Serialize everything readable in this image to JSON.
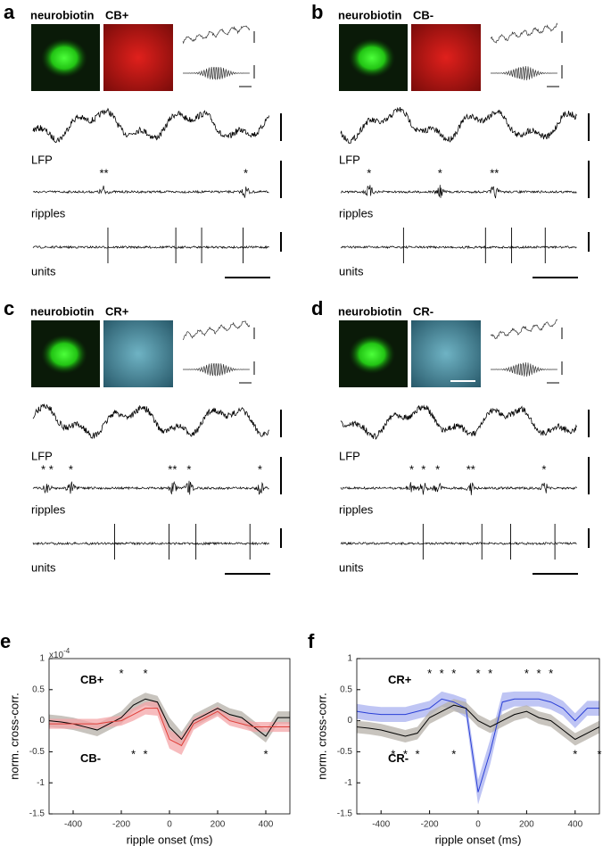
{
  "panels": [
    {
      "letter": "a",
      "stain": "neurobiotin",
      "marker": "CB+",
      "lfp": "LFP",
      "ripples": "ripples",
      "units": "units",
      "ripple_marks": [
        "**",
        "*"
      ]
    },
    {
      "letter": "b",
      "stain": "neurobiotin",
      "marker": "CB-",
      "lfp": "LFP",
      "ripples": "ripples",
      "units": "units",
      "ripple_marks": [
        "*",
        "*",
        "**"
      ]
    },
    {
      "letter": "c",
      "stain": "neurobiotin",
      "marker": "CR+",
      "lfp": "LFP",
      "ripples": "ripples",
      "units": "units",
      "ripple_marks": [
        "* *",
        "*",
        "**",
        "*",
        "*"
      ]
    },
    {
      "letter": "d",
      "stain": "neurobiotin",
      "marker": "CR-",
      "lfp": "LFP",
      "ripples": "ripples",
      "units": "units",
      "ripple_marks": [
        "*",
        "*",
        "*",
        "**",
        "*"
      ]
    }
  ],
  "chart_data": [
    {
      "type": "line",
      "label": "e",
      "multiplier": {
        "base": "x10",
        "exponent": "-4"
      },
      "x_label": "ripple onset (ms)",
      "y_label": "norm. cross-corr.",
      "x": [
        -500,
        -450,
        -400,
        -350,
        -300,
        -250,
        -200,
        -150,
        -100,
        -50,
        0,
        50,
        100,
        150,
        200,
        250,
        300,
        350,
        400,
        450,
        500
      ],
      "xlim": [
        -500,
        500
      ],
      "xticks": [
        -400,
        -200,
        0,
        200,
        400
      ],
      "ylim": [
        -1.5,
        1
      ],
      "yticks": [
        -1.5,
        -1,
        -0.5,
        0,
        0.5,
        1
      ],
      "series": [
        {
          "name": "CB+",
          "color": "#000000",
          "band_color": "#b5b0a8",
          "values": [
            0,
            -0.02,
            -0.05,
            -0.1,
            -0.15,
            -0.05,
            0.05,
            0.25,
            0.35,
            0.3,
            -0.1,
            -0.3,
            0,
            0.1,
            0.2,
            0.1,
            0.05,
            -0.1,
            -0.25,
            0.05,
            0.05
          ],
          "errors": [
            0.1,
            0.1,
            0.1,
            0.1,
            0.1,
            0.1,
            0.1,
            0.1,
            0.1,
            0.1,
            0.15,
            0.12,
            0.1,
            0.1,
            0.1,
            0.1,
            0.1,
            0.1,
            0.1,
            0.1,
            0.1
          ]
        },
        {
          "name": "CB-",
          "color": "#e0403a",
          "band_color": "#f4a5a8",
          "values": [
            -0.05,
            -0.05,
            -0.05,
            -0.05,
            -0.05,
            -0.02,
            0,
            0.1,
            0.2,
            0.2,
            -0.3,
            -0.4,
            -0.05,
            0.05,
            0.15,
            0,
            -0.05,
            -0.1,
            -0.1,
            -0.1,
            -0.1
          ],
          "errors": [
            0.08,
            0.08,
            0.08,
            0.08,
            0.08,
            0.08,
            0.08,
            0.1,
            0.1,
            0.12,
            0.15,
            0.15,
            0.1,
            0.08,
            0.08,
            0.08,
            0.08,
            0.08,
            0.08,
            0.08,
            0.08
          ]
        }
      ],
      "annotations": [
        {
          "text": "*",
          "x": -200,
          "y": 0.75,
          "color": "#e0403a"
        },
        {
          "text": "*",
          "x": -100,
          "y": 0.75,
          "color": "#e0403a"
        },
        {
          "text": "*",
          "x": -150,
          "y": -0.55,
          "color": "#000000"
        },
        {
          "text": "*",
          "x": -100,
          "y": -0.55,
          "color": "#000000"
        },
        {
          "text": "*",
          "x": 400,
          "y": -0.55,
          "color": "#000000"
        }
      ]
    },
    {
      "type": "line",
      "label": "f",
      "x_label": "ripple onset (ms)",
      "y_label": "norm. cross-corr.",
      "x": [
        -500,
        -450,
        -400,
        -350,
        -300,
        -250,
        -200,
        -150,
        -100,
        -50,
        0,
        50,
        100,
        150,
        200,
        250,
        300,
        350,
        400,
        450,
        500
      ],
      "xlim": [
        -500,
        500
      ],
      "xticks": [
        -400,
        -200,
        0,
        200,
        400
      ],
      "ylim": [
        -1.5,
        1
      ],
      "yticks": [
        -1.5,
        -1,
        -0.5,
        0,
        0.5,
        1
      ],
      "series": [
        {
          "name": "CR+",
          "color": "#2a3fd6",
          "band_color": "#aab1f0",
          "values": [
            0.15,
            0.12,
            0.1,
            0.1,
            0.1,
            0.15,
            0.2,
            0.35,
            0.3,
            0.2,
            -1.15,
            -0.5,
            0.3,
            0.35,
            0.35,
            0.35,
            0.3,
            0.2,
            0,
            0.2,
            0.2
          ],
          "errors": [
            0.12,
            0.12,
            0.12,
            0.12,
            0.12,
            0.12,
            0.12,
            0.12,
            0.12,
            0.15,
            0.2,
            0.2,
            0.15,
            0.12,
            0.12,
            0.12,
            0.12,
            0.12,
            0.12,
            0.12,
            0.12
          ]
        },
        {
          "name": "CR-",
          "color": "#000000",
          "band_color": "#b5b0a8",
          "values": [
            -0.1,
            -0.12,
            -0.15,
            -0.2,
            -0.25,
            -0.2,
            0.05,
            0.15,
            0.25,
            0.2,
            0,
            -0.1,
            0,
            0.1,
            0.15,
            0.05,
            0,
            -0.15,
            -0.3,
            -0.2,
            -0.1
          ],
          "errors": [
            0.1,
            0.1,
            0.1,
            0.1,
            0.1,
            0.1,
            0.1,
            0.1,
            0.1,
            0.1,
            0.1,
            0.1,
            0.1,
            0.1,
            0.1,
            0.1,
            0.1,
            0.1,
            0.1,
            0.1,
            0.1
          ]
        }
      ],
      "annotations": [
        {
          "text": "*",
          "x": -200,
          "y": 0.75,
          "color": "#2a3fd6"
        },
        {
          "text": "*",
          "x": -150,
          "y": 0.75,
          "color": "#2a3fd6"
        },
        {
          "text": "*",
          "x": -100,
          "y": 0.75,
          "color": "#2a3fd6"
        },
        {
          "text": "*",
          "x": 0,
          "y": 0.75,
          "color": "#2a3fd6"
        },
        {
          "text": "*",
          "x": 50,
          "y": 0.75,
          "color": "#2a3fd6"
        },
        {
          "text": "*",
          "x": 200,
          "y": 0.75,
          "color": "#2a3fd6"
        },
        {
          "text": "*",
          "x": 250,
          "y": 0.75,
          "color": "#2a3fd6"
        },
        {
          "text": "*",
          "x": 300,
          "y": 0.75,
          "color": "#2a3fd6"
        },
        {
          "text": "*",
          "x": -350,
          "y": -0.55,
          "color": "#000000"
        },
        {
          "text": "*",
          "x": -300,
          "y": -0.55,
          "color": "#000000"
        },
        {
          "text": "*",
          "x": -250,
          "y": -0.55,
          "color": "#000000"
        },
        {
          "text": "*",
          "x": -100,
          "y": -0.55,
          "color": "#000000"
        },
        {
          "text": "*",
          "x": 400,
          "y": -0.55,
          "color": "#000000"
        },
        {
          "text": "*",
          "x": 500,
          "y": -0.55,
          "color": "#000000"
        }
      ]
    }
  ]
}
